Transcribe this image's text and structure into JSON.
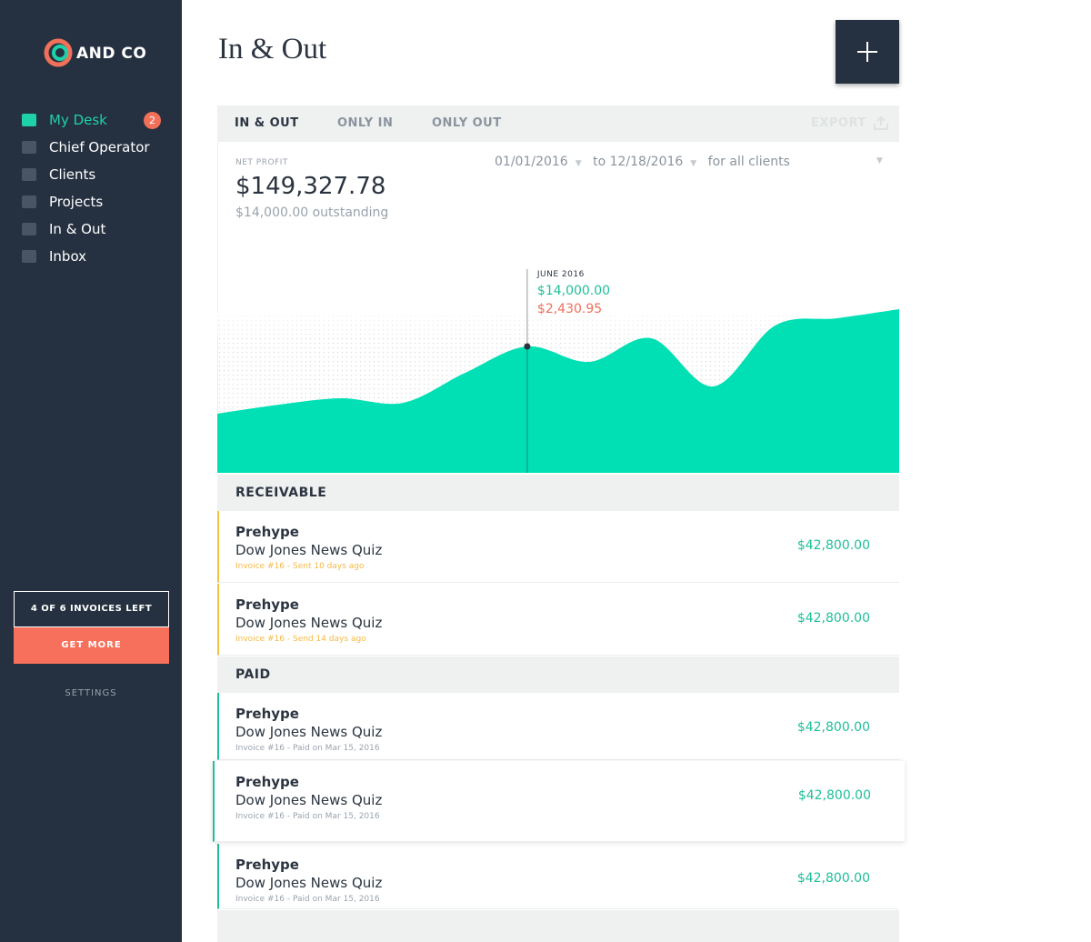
{
  "sidebar": {
    "logo": "AND CO",
    "nav": [
      {
        "label": "My Desk",
        "badge": "2"
      },
      {
        "label": "Chief Operator"
      },
      {
        "label": "Clients"
      },
      {
        "label": "Projects"
      },
      {
        "label": "In & Out"
      },
      {
        "label": "Inbox"
      }
    ],
    "invoices_left": "4 OF 6 INVOICES LEFT",
    "get_more": "GET MORE",
    "settings": "SETTINGS"
  },
  "header": {
    "title": "In & Out"
  },
  "tabs": [
    "IN & OUT",
    "ONLY IN",
    "ONLY OUT"
  ],
  "export": "EXPORT",
  "summary": {
    "label": "NET PROFIT",
    "amount": "$149,327.78",
    "outstanding": "$14,000.00 outstanding",
    "from": "01/01/2016",
    "to_label": "to",
    "to": "12/18/2016",
    "for_label": "for",
    "clients": "all clients"
  },
  "chart": {
    "type": "area",
    "color": "#00e0b4",
    "values": [
      65,
      75,
      82,
      77,
      110,
      139,
      122,
      148,
      95,
      162,
      170,
      180
    ],
    "tooltip": {
      "date": "JUNE 2016",
      "in": "$14,000.00",
      "out": "$2,430.95"
    }
  },
  "sections": [
    {
      "title": "RECEIVABLE",
      "items": [
        {
          "client": "Prehype",
          "project": "Dow Jones News Quiz",
          "meta": "Invoice #16 - Sent 10 days ago",
          "amount": "$42,800.00"
        },
        {
          "client": "Prehype",
          "project": "Dow Jones News Quiz",
          "meta": "Invoice #16 - Send 14 days ago",
          "amount": "$42,800.00"
        }
      ]
    },
    {
      "title": "PAID",
      "items": [
        {
          "client": "Prehype",
          "project": "Dow Jones News Quiz",
          "meta": "Invoice #16 - Paid on Mar 15, 2016",
          "amount": "$42,800.00"
        },
        {
          "client": "Prehype",
          "project": "Dow Jones News Quiz",
          "meta": "Invoice #16 - Paid on Mar 15, 2016",
          "amount": "$42,800.00"
        },
        {
          "client": "Prehype",
          "project": "Dow Jones News Quiz",
          "meta": "Invoice #16 - Paid on Mar 15, 2016",
          "amount": "$42,800.00"
        }
      ]
    }
  ]
}
